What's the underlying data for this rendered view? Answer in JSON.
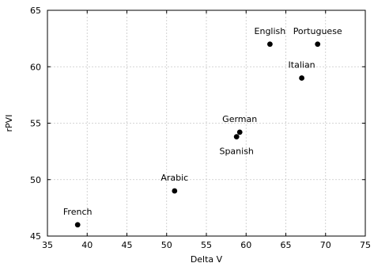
{
  "chart_data": {
    "type": "scatter",
    "title": "",
    "xlabel": "Delta V",
    "ylabel": "rPVI",
    "xlim": [
      35,
      75
    ],
    "ylim": [
      45,
      65
    ],
    "xticks": [
      35,
      40,
      45,
      50,
      55,
      60,
      65,
      70,
      75
    ],
    "yticks": [
      45,
      50,
      55,
      60,
      65
    ],
    "grid": true,
    "points": [
      {
        "label": "English",
        "x": 63.0,
        "y": 62.0,
        "label_pos": "above"
      },
      {
        "label": "Portuguese",
        "x": 69.0,
        "y": 62.0,
        "label_pos": "above"
      },
      {
        "label": "Italian",
        "x": 67.0,
        "y": 59.0,
        "label_pos": "above"
      },
      {
        "label": "German",
        "x": 59.2,
        "y": 54.2,
        "label_pos": "above"
      },
      {
        "label": "Spanish",
        "x": 58.8,
        "y": 53.8,
        "label_pos": "below"
      },
      {
        "label": "Arabic",
        "x": 51.0,
        "y": 49.0,
        "label_pos": "above"
      },
      {
        "label": "French",
        "x": 38.8,
        "y": 46.0,
        "label_pos": "above"
      }
    ]
  }
}
